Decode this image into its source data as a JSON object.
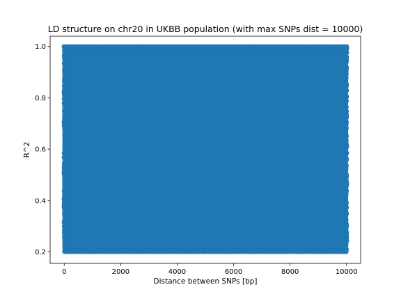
{
  "chart_data": {
    "type": "scatter",
    "title": "LD structure on chr20 in UKBB population (with max SNPs dist = 10000)",
    "xlabel": "Distance between SNPs [bp]",
    "ylabel": "R^2",
    "xlim": [
      -500,
      10500
    ],
    "ylim": [
      0.155,
      1.04
    ],
    "xticks": [
      0,
      2000,
      4000,
      6000,
      8000,
      10000
    ],
    "yticks": [
      0.2,
      0.4,
      0.6,
      0.8,
      1.0
    ],
    "ytick_labels": [
      "0.2",
      "0.4",
      "0.6",
      "0.8",
      "1.0"
    ],
    "grid": false,
    "legend": "none",
    "series": [
      {
        "color": "#1f77b4",
        "x_range": [
          0,
          10000
        ],
        "y_range": [
          0.2,
          1.0
        ],
        "distribution": "dense, uniformly covering the full x and y range"
      }
    ]
  }
}
